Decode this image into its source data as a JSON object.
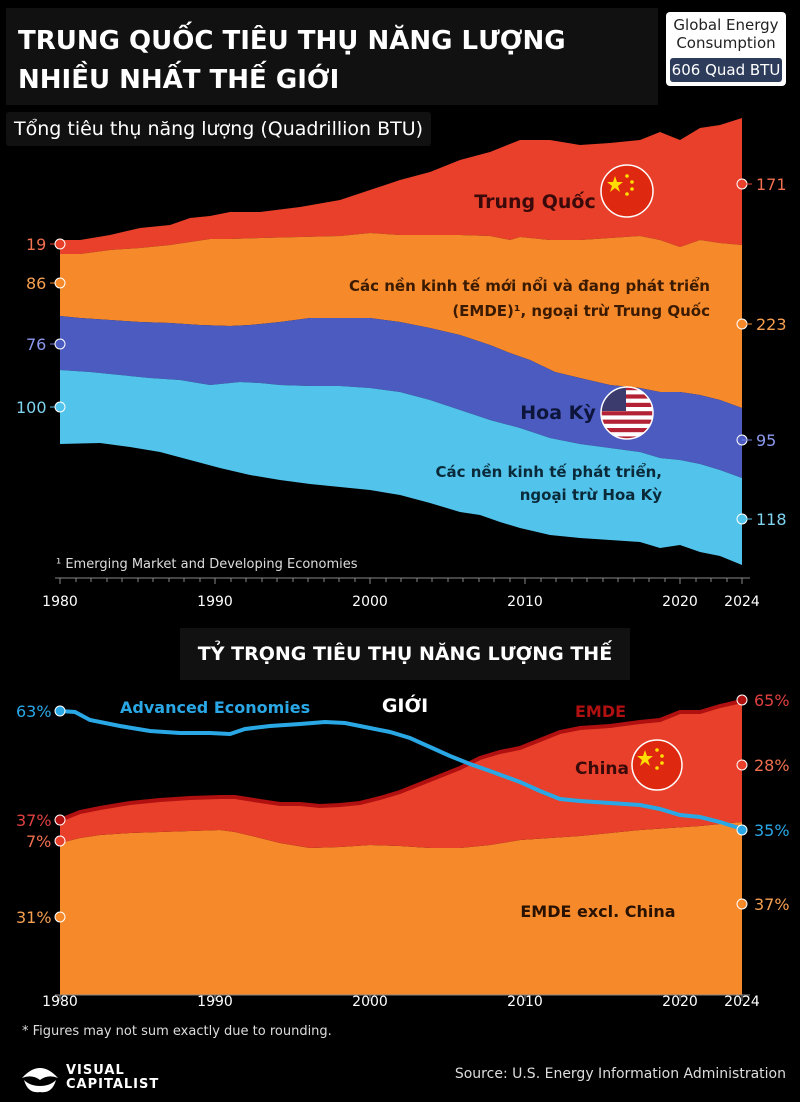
{
  "header": {
    "title": "TRUNG QUỐC TIÊU THỤ NĂNG LƯỢNG NHIỀU NHẤT THẾ GIỚI",
    "badge_line1": "Global Energy",
    "badge_line2": "Consumption",
    "badge_value": "606 Quad BTU"
  },
  "chart_top": {
    "subtitle": "Tổng tiêu thụ năng lượng (Quadrillion BTU)",
    "footnote": "¹ Emerging Market and Developing Economies",
    "labels": {
      "china": "Trung Quốc",
      "emde_line1": "Các nền kinh tế mới nổi và đang phát triển",
      "emde_line2": "(EMDE)¹, ngoại trừ Trung Quốc",
      "us": "Hoa Kỳ",
      "adv_line1": "Các nền kinh tế phát triển,",
      "adv_line2": "ngoại trừ Hoa Kỳ"
    },
    "start_values": [
      "19",
      "86",
      "76",
      "100"
    ],
    "end_values": [
      "171",
      "223",
      "95",
      "118"
    ]
  },
  "chart_bottom": {
    "title": "TỶ TRỌNG TIÊU THỤ NĂNG LƯỢNG THẾ GIỚI",
    "labels": {
      "advanced": "Advanced Economies",
      "emde": "EMDE",
      "china": "China",
      "emde_ex": "EMDE excl. China"
    },
    "start_values": [
      "63%",
      "37%",
      "7%",
      "31%"
    ],
    "end_values": [
      "65%",
      "28%",
      "35%",
      "37%"
    ]
  },
  "x_ticks": [
    "1980",
    "1990",
    "2000",
    "2010",
    "2020",
    "2024"
  ],
  "footer": {
    "note": "* Figures may not sum exactly due to rounding.",
    "logo_line1": "VISUAL",
    "logo_line2": "CAPITALIST",
    "source": "Source: U.S. Energy Information Administration"
  },
  "colors": {
    "china": "#e8402a",
    "emde_ex_china": "#f6892a",
    "us": "#4b5bc0",
    "advanced_ex_us": "#52c3ea",
    "advanced_line": "#2aa8e6",
    "emde_line": "#b01010"
  },
  "chart_data": [
    {
      "type": "area",
      "title": "Tổng tiêu thụ năng lượng (Quadrillion BTU)",
      "x": [
        1980,
        1985,
        1990,
        1995,
        2000,
        2005,
        2010,
        2015,
        2020,
        2024
      ],
      "series": [
        {
          "name": "Các nền kinh tế phát triển, ngoại trừ Hoa Kỳ",
          "values": [
            100,
            103,
            110,
            114,
            118,
            122,
            121,
            118,
            112,
            118
          ]
        },
        {
          "name": "Hoa Kỳ",
          "values": [
            76,
            74,
            84,
            91,
            98,
            100,
            97,
            97,
            93,
            95
          ]
        },
        {
          "name": "Các nền kinh tế mới nổi và đang phát triển (EMDE)¹, ngoại trừ Trung Quốc",
          "values": [
            86,
            100,
            118,
            120,
            132,
            150,
            175,
            195,
            200,
            223
          ]
        },
        {
          "name": "Trung Quốc",
          "values": [
            19,
            25,
            30,
            40,
            42,
            70,
            105,
            125,
            150,
            171
          ]
        }
      ]
    },
    {
      "type": "area",
      "title": "TỶ TRỌNG TIÊU THỤ NĂNG LƯỢNG THẾ GIỚI",
      "x": [
        1980,
        1985,
        1990,
        1995,
        2000,
        2005,
        2010,
        2015,
        2020,
        2024
      ],
      "series": [
        {
          "name": "EMDE excl. China",
          "values": [
            31,
            32,
            33,
            31,
            31,
            32,
            33,
            34,
            36,
            37
          ]
        },
        {
          "name": "China",
          "values": [
            7,
            8,
            8,
            8,
            9,
            13,
            20,
            23,
            26,
            28
          ]
        },
        {
          "name": "EMDE",
          "values": [
            37,
            40,
            41,
            40,
            41,
            47,
            54,
            59,
            62,
            65
          ]
        },
        {
          "name": "Advanced Economies",
          "values": [
            63,
            60,
            59,
            61,
            59,
            53,
            46,
            41,
            38,
            35
          ]
        }
      ],
      "ylim": [
        0,
        100
      ]
    }
  ]
}
